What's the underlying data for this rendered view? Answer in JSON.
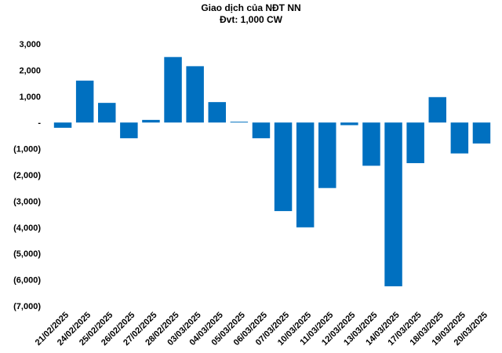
{
  "chart_data": {
    "type": "bar",
    "title": "Giao dịch của NĐT NN",
    "subtitle": "Đvt: 1,000 CW",
    "categories": [
      "21/02/2025",
      "24/02/2025",
      "25/02/2025",
      "26/02/2025",
      "27/02/2025",
      "28/02/2025",
      "03/03/2025",
      "04/03/2025",
      "05/03/2025",
      "06/03/2025",
      "07/03/2025",
      "10/03/2025",
      "11/03/2025",
      "12/03/2025",
      "13/03/2025",
      "14/03/2025",
      "17/03/2025",
      "18/03/2025",
      "19/03/2025",
      "20/03/2025"
    ],
    "values": [
      -200,
      1600,
      750,
      -600,
      100,
      2500,
      2150,
      780,
      30,
      -600,
      -3380,
      -4000,
      -2500,
      -100,
      -1650,
      -6250,
      -1550,
      970,
      -1180,
      -800
    ],
    "y_ticks": [
      3000,
      2000,
      1000,
      0,
      -1000,
      -2000,
      -3000,
      -4000,
      -5000,
      -6000,
      -7000
    ],
    "y_tick_labels": [
      "3,000",
      "2,000",
      "1,000",
      "-",
      "(1,000)",
      "(2,000)",
      "(3,000)",
      "(4,000)",
      "(5,000)",
      "(6,000)",
      "(7,000)"
    ],
    "ylim": [
      -7000,
      3000
    ],
    "grid": false,
    "bar_color": "#0070C0",
    "xlabel": "",
    "ylabel": ""
  }
}
